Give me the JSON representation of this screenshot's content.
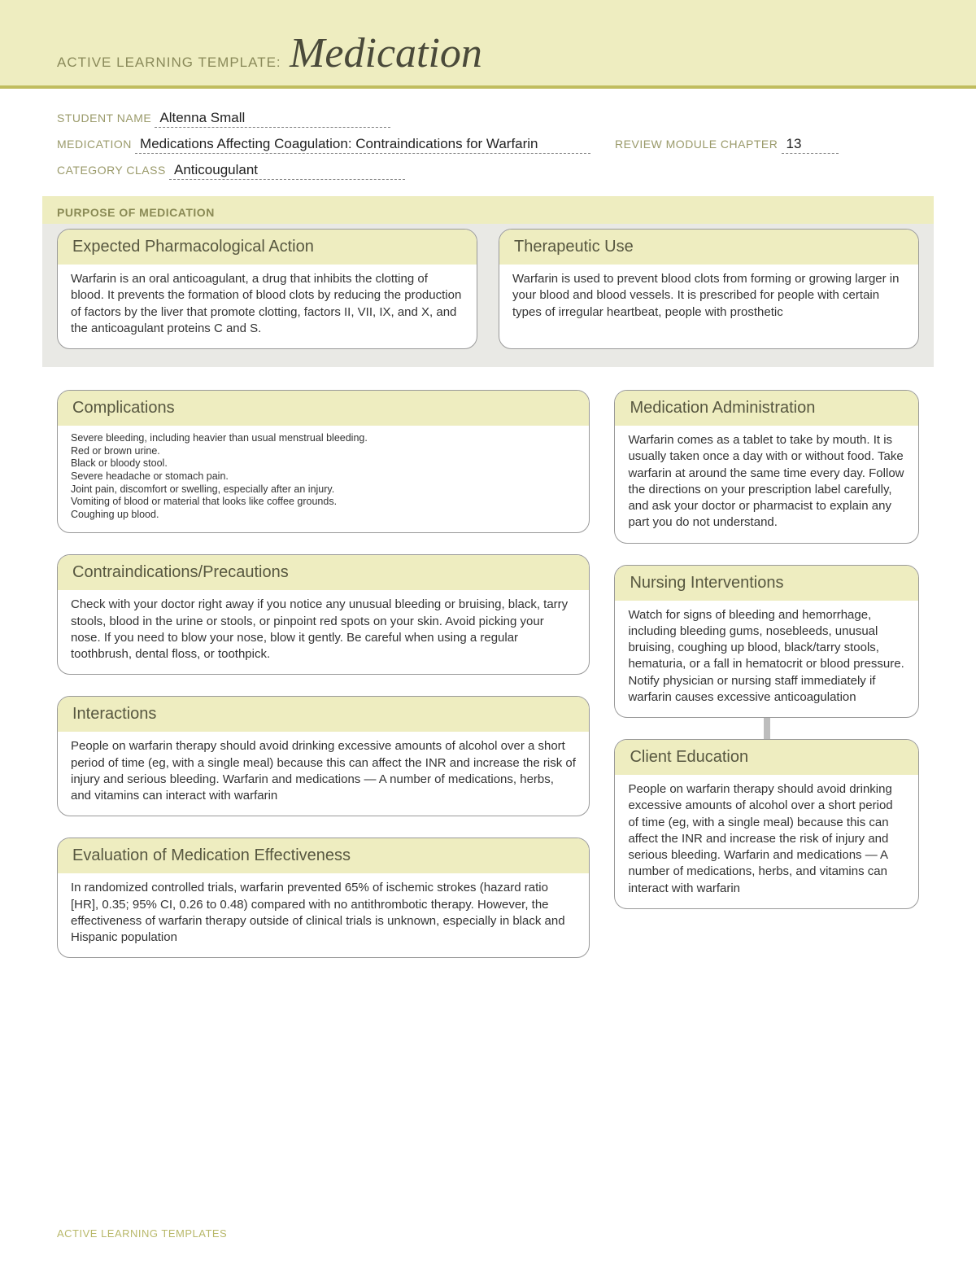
{
  "banner": {
    "prefix": "ACTIVE LEARNING TEMPLATE:",
    "title": "Medication"
  },
  "form": {
    "student_label": "STUDENT NAME",
    "student_value": "Altenna Small",
    "medication_label": "MEDICATION",
    "medication_value": "Medications Affecting Coagulation: Contraindications for Warfarin",
    "review_label": "REVIEW MODULE CHAPTER",
    "review_value": "13",
    "category_label": "CATEGORY CLASS",
    "category_value": "Anticougulant"
  },
  "purpose_heading": "PURPOSE OF MEDICATION",
  "cards": {
    "pharm": {
      "title": "Expected Pharmacological Action",
      "body": "Warfarin is an oral anticoagulant, a drug that inhibits the clotting of blood. It prevents the formation of blood clots by reducing the production of factors by the liver that promote clotting, factors II, VII, IX, and X, and the anticoagulant proteins C and S."
    },
    "therapeutic": {
      "title": "Therapeutic Use",
      "body": "Warfarin is used to prevent blood clots from forming or growing larger in your blood and blood vessels. It is prescribed for people with certain types of irregular heartbeat, people with prosthetic"
    },
    "complications": {
      "title": "Complications",
      "body": "Severe bleeding, including heavier than usual menstrual bleeding.\nRed or brown urine.\nBlack or bloody stool.\nSevere headache or stomach pain.\nJoint pain, discomfort or swelling, especially after an injury.\nVomiting of blood or material that looks like coffee grounds.\nCoughing up blood."
    },
    "contra": {
      "title": "Contraindications/Precautions",
      "body": "Check with your doctor right away if you notice any unusual bleeding or bruising, black, tarry stools, blood in the urine or stools, or pinpoint red spots on your skin. Avoid picking your nose. If you need to blow your nose, blow it gently. Be careful when using a regular toothbrush, dental floss, or toothpick."
    },
    "interactions": {
      "title": "Interactions",
      "body": "People on warfarin therapy should avoid drinking excessive amounts of alcohol over a short period of time (eg, with a single meal) because this can affect the INR and increase the risk of injury and serious bleeding. Warfarin and medications — A number of medications, herbs, and vitamins can interact with warfarin"
    },
    "evaluation": {
      "title": "Evaluation of Medication Effectiveness",
      "body": "In randomized controlled trials, warfarin prevented 65% of ischemic strokes (hazard ratio [HR], 0.35; 95% CI, 0.26 to 0.48) compared with no antithrombotic therapy. However, the effectiveness of warfarin therapy outside of clinical trials is unknown, especially in black and Hispanic population"
    },
    "admin": {
      "title": "Medication Administration",
      "body": "Warfarin comes as a tablet to take by mouth. It is usually taken once a day with or without food. Take warfarin at around the same time every day. Follow the directions on your prescription label carefully, and ask your doctor or pharmacist to explain any part you do not understand."
    },
    "nursing": {
      "title": "Nursing Interventions",
      "body": "Watch for signs of bleeding and hemorrhage, including bleeding gums, nosebleeds, unusual bruising, coughing up blood, black/tarry stools, hematuria, or a fall in hematocrit or blood pressure. Notify physician or nursing staff immediately if warfarin causes excessive anticoagulation"
    },
    "client": {
      "title": "Client Education",
      "body": "People on warfarin therapy should avoid drinking excessive amounts of alcohol over a short period of time (eg, with a single meal) because this can affect the INR and increase the risk of injury and serious bleeding. Warfarin and medications — A number of medications, herbs, and vitamins can interact with warfarin"
    }
  },
  "footer": "ACTIVE LEARNING TEMPLATES",
  "colors": {
    "banner_bg": "#eeedc0",
    "banner_rule": "#c0bd5e",
    "card_head_bg": "#eeedc0",
    "purpose_bg": "#e9e9e5",
    "label_color": "#9a9a6a"
  }
}
